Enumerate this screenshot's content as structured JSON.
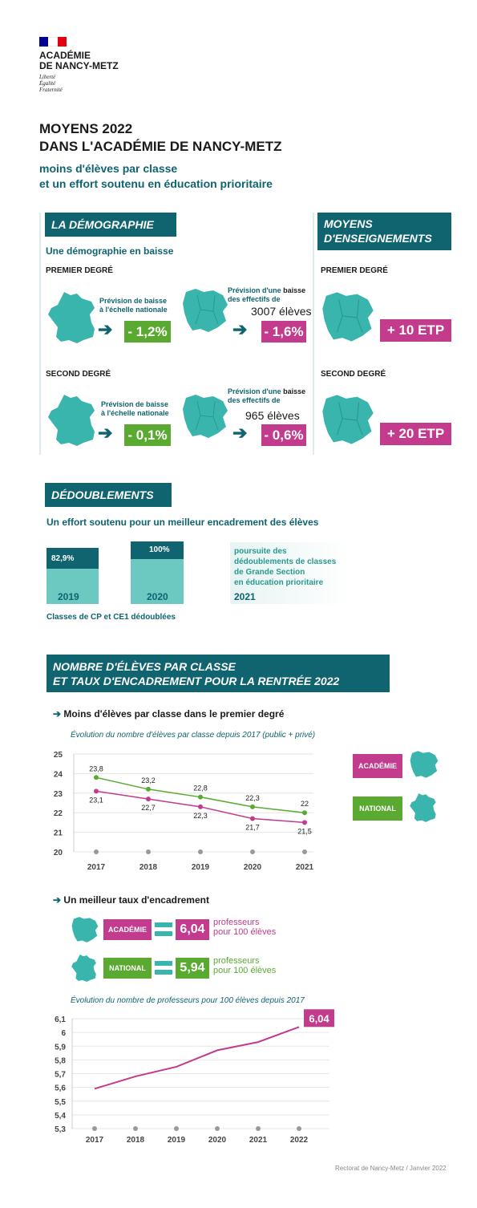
{
  "header": {
    "org_line1": "ACADÉMIE",
    "org_line2": "DE NANCY-METZ",
    "motto1": "Liberté",
    "motto2": "Égalité",
    "motto3": "Fraternité",
    "title1": "MOYENS 2022",
    "title2": "DANS L'ACADÉMIE DE NANCY-METZ",
    "subtitle1": "moins d'élèves par classe",
    "subtitle2": "et un effort soutenu en éducation prioritaire"
  },
  "demo": {
    "heading": "LA DÉMOGRAPHIE",
    "sub": "Une démographie en baisse",
    "premier": "PREMIER DEGRÉ",
    "second": "SECOND DEGRÉ",
    "nat_label1": "Prévision de baisse",
    "nat_label2": "à l'échelle nationale",
    "acad_label1a": "Prévision d'une ",
    "acad_label1b": "baisse",
    "acad_label2": "des effectifs de",
    "p1_nat": "- 1,2%",
    "p1_count": "3007 élèves",
    "p1_acad": "- 1,6%",
    "s_nat": "- 0,1%",
    "s_count": "965 élèves",
    "s_acad": "- 0,6%"
  },
  "moyens": {
    "heading1": "MOYENS",
    "heading2": "D'ENSEIGNEMENTS",
    "premier": "PREMIER DEGRÉ",
    "second": "SECOND DEGRÉ",
    "p_value": "+ 10 ETP",
    "s_value": "+ 20 ETP"
  },
  "dedoub": {
    "heading": "DÉDOUBLEMENTS",
    "sub": "Un effort soutenu pour un meilleur encadrement des élèves",
    "v2019": "82,9%",
    "v2020": "100%",
    "y2019": "2019",
    "y2020": "2020",
    "y2021": "2021",
    "text2021_1": "poursuite des",
    "text2021_2": "dédoublements de classes",
    "text2021_3": "de Grande Section",
    "text2021_4": "en éducation prioritaire",
    "caption": "Classes de CP et CE1 dédoublées"
  },
  "nombre": {
    "heading1": "NOMBRE D'ÉLÈVES PAR CLASSE",
    "heading2": "ET TAUX D'ENCADREMENT POUR LA RENTRÉE 2022",
    "sub1": "Moins d'élèves par classe dans le premier degré",
    "chart1_title": "Évolution du nombre d'élèves par classe depuis 2017 (public + privé)",
    "legend_acad": "ACADÉMIE",
    "legend_nat": "NATIONAL",
    "sub2": "Un meilleur taux d'encadrement",
    "acad_badge": "ACADÉMIE",
    "acad_value": "6,04",
    "nat_badge": "NATIONAL",
    "nat_value": "5,94",
    "unit1": "professeurs",
    "unit2": "pour 100 élèves",
    "chart2_title": "Évolution du nombre de professeurs pour 100 élèves depuis 2017",
    "chart2_end_label": "6,04"
  },
  "footer": "Rectorat de Nancy-Metz / Janvier 2022",
  "colors": {
    "teal": "#0f6470",
    "map": "#3ab5ad",
    "green": "#5aaa32",
    "pink": "#c23b8c"
  },
  "chart_data": [
    {
      "type": "line",
      "title": "Évolution du nombre d'élèves par classe depuis 2017 (public + privé)",
      "x": [
        2017,
        2018,
        2019,
        2020,
        2021
      ],
      "ylim": [
        20,
        25
      ],
      "yticks": [
        20,
        21,
        22,
        23,
        24,
        25
      ],
      "series": [
        {
          "name": "NATIONAL",
          "color": "#5aaa32",
          "values": [
            23.8,
            23.2,
            22.8,
            22.3,
            22
          ],
          "labels": [
            "23,8",
            "23,2",
            "22,8",
            "22,3",
            "22"
          ]
        },
        {
          "name": "ACADÉMIE",
          "color": "#c23b8c",
          "values": [
            23.1,
            22.7,
            22.3,
            21.7,
            21.5
          ],
          "labels": [
            "23,1",
            "22,7",
            "22,3",
            "21,7",
            "21,5"
          ]
        }
      ],
      "grid": true
    },
    {
      "type": "line",
      "title": "Évolution du nombre de professeurs pour 100 élèves depuis 2017",
      "x": [
        2017,
        2018,
        2019,
        2020,
        2021,
        2022
      ],
      "ylim": [
        5.3,
        6.1
      ],
      "yticks": [
        "5,3",
        "5,4",
        "5,5",
        "5,6",
        "5,7",
        "5,8",
        "5,9",
        "6",
        "6,1"
      ],
      "series": [
        {
          "color": "#c23b8c",
          "values": [
            5.59,
            5.68,
            5.75,
            5.87,
            5.93,
            6.04
          ]
        }
      ],
      "grid": true
    }
  ]
}
